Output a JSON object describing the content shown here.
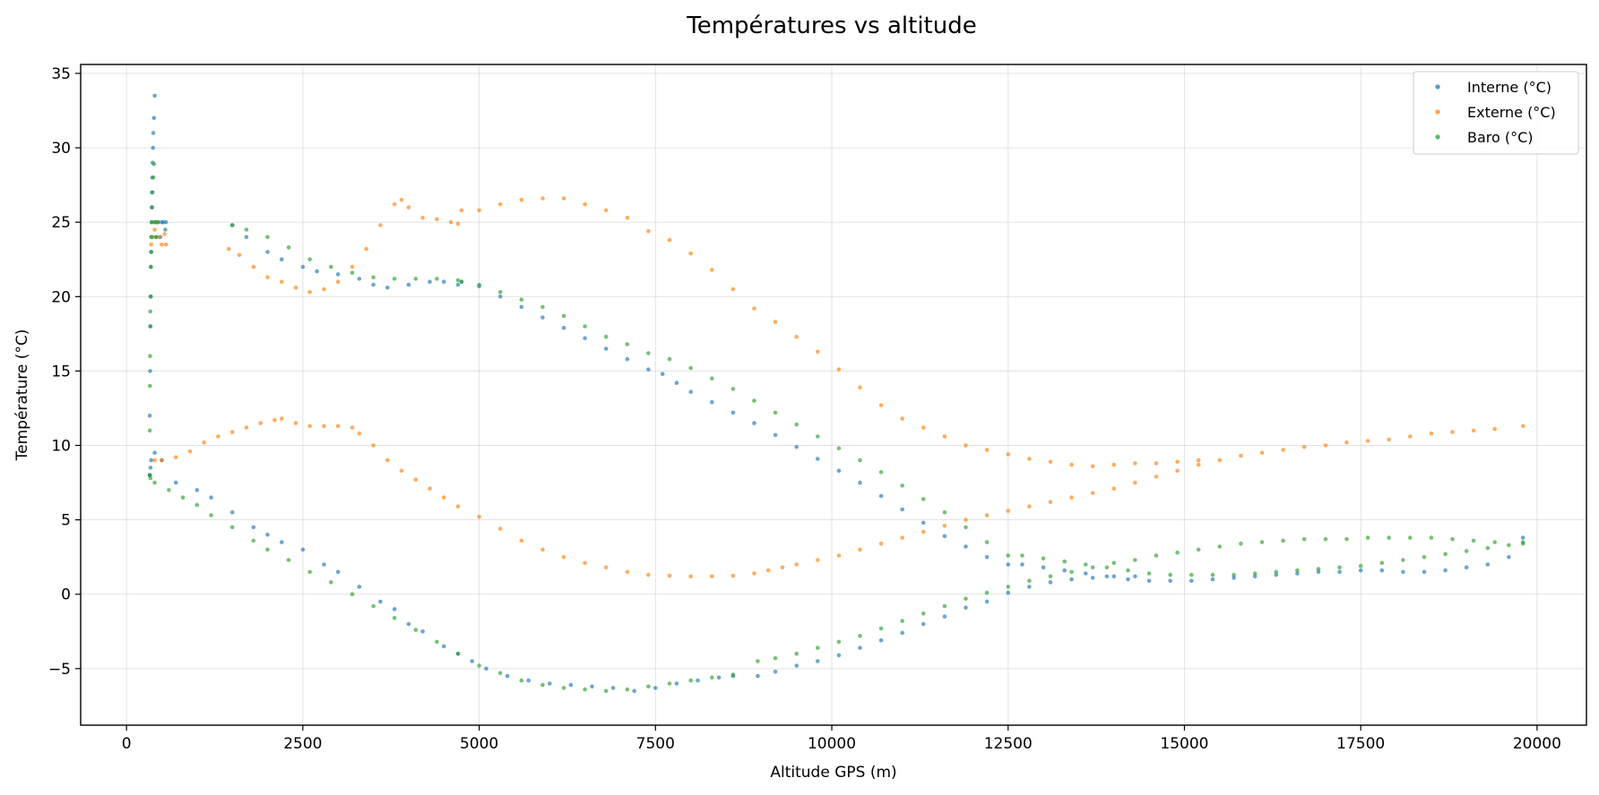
{
  "chart_data": {
    "type": "scatter",
    "title": "Températures vs altitude",
    "xlabel": "Altitude GPS (m)",
    "ylabel": "Température (°C)",
    "xlim": [
      -650,
      20700
    ],
    "ylim": [
      -8.8,
      35.6
    ],
    "xticks": [
      0,
      2500,
      5000,
      7500,
      10000,
      12500,
      15000,
      17500,
      20000
    ],
    "yticks": [
      -5,
      0,
      5,
      10,
      15,
      20,
      25,
      30,
      35
    ],
    "xtick_labels": [
      "0",
      "2500",
      "5000",
      "7500",
      "10000",
      "12500",
      "15000",
      "17500",
      "20000"
    ],
    "ytick_labels": [
      "−5",
      "0",
      "5",
      "10",
      "15",
      "20",
      "25",
      "30",
      "35"
    ],
    "grid": true,
    "legend_position": "top-right",
    "series": [
      {
        "name": "Interne (°C)",
        "color": "#1f77b4",
        "segments": [
          {
            "x": [
              330,
              330,
              335,
              340,
              345,
              345,
              350,
              352,
              355,
              356,
              360,
              365,
              370,
              375,
              380,
              390,
              400,
              410,
              420,
              450,
              480,
              500,
              520,
              550,
              560
            ],
            "y": [
              8,
              12,
              15,
              18,
              20,
              22,
              23,
              24,
              25,
              26,
              27,
              28,
              29,
              30,
              31,
              32,
              33.5,
              25,
              24,
              25,
              24,
              25,
              25,
              24.5,
              25
            ]
          },
          {
            "x": [
              330,
              340,
              350,
              400,
              500,
              700,
              1000,
              1200,
              1500,
              1800,
              2000,
              2200,
              2500,
              2800,
              3000,
              3300,
              3600,
              3800,
              4000,
              4200,
              4500,
              4700,
              4900,
              5100,
              5400,
              5700,
              6000,
              6300,
              6600,
              6900,
              7200,
              7500,
              7800,
              8100,
              8400,
              8600
            ],
            "y": [
              8,
              8.5,
              9,
              9.5,
              9,
              7.5,
              7,
              6.5,
              5.5,
              4.5,
              4,
              3.5,
              3,
              2,
              1.5,
              0.5,
              -0.5,
              -1,
              -2,
              -2.5,
              -3.5,
              -4,
              -4.5,
              -5,
              -5.5,
              -5.8,
              -6,
              -6.1,
              -6.2,
              -6.3,
              -6.5,
              -6.3,
              -6,
              -5.8,
              -5.6,
              -5.5
            ]
          },
          {
            "x": [
              1500,
              1700,
              2000,
              2200,
              2500,
              2700,
              3000,
              3300,
              3500,
              3700,
              4000,
              4300,
              4500,
              4700
            ],
            "y": [
              24.8,
              24,
              23,
              22.5,
              22,
              21.7,
              21.5,
              21.2,
              20.8,
              20.6,
              20.8,
              21,
              21,
              20.8
            ]
          },
          {
            "x": [
              4750,
              5000,
              5300,
              5600,
              5900,
              6200,
              6500,
              6800,
              7100,
              7400,
              7600,
              7800,
              8000,
              8300,
              8600,
              8900,
              9200,
              9500,
              9800,
              10100,
              10400,
              10700,
              11000,
              11300,
              11600,
              11900,
              12200,
              12500
            ],
            "y": [
              21,
              20.7,
              20,
              19.3,
              18.6,
              17.9,
              17.2,
              16.5,
              15.8,
              15.1,
              14.8,
              14.2,
              13.6,
              12.9,
              12.2,
              11.5,
              10.7,
              9.9,
              9.1,
              8.3,
              7.5,
              6.6,
              5.7,
              4.8,
              3.9,
              3.2,
              2.5,
              2
            ]
          },
          {
            "x": [
              12700,
              13000,
              13300,
              13600,
              13900,
              14200,
              14500,
              14800,
              15100,
              15400,
              15700,
              16000,
              16300,
              16600,
              16900,
              17200,
              17500,
              17800,
              18100,
              18400,
              18700,
              19000,
              19300,
              19600,
              19800
            ],
            "y": [
              2,
              1.8,
              1.6,
              1.4,
              1.2,
              1,
              0.9,
              0.9,
              0.9,
              1,
              1.1,
              1.2,
              1.3,
              1.4,
              1.5,
              1.5,
              1.6,
              1.6,
              1.5,
              1.5,
              1.6,
              1.8,
              2,
              2.5,
              3.8
            ]
          },
          {
            "x": [
              8950,
              9200,
              9500,
              9800,
              10100,
              10400,
              10700,
              11000,
              11300,
              11600,
              11900,
              12200,
              12500,
              12800,
              13100,
              13400,
              13700,
              14000,
              14300
            ],
            "y": [
              -5.5,
              -5.2,
              -4.8,
              -4.5,
              -4.1,
              -3.6,
              -3.1,
              -2.6,
              -2,
              -1.5,
              -0.9,
              -0.5,
              0.1,
              0.5,
              0.8,
              1,
              1.1,
              1.2,
              1.2
            ]
          }
        ]
      },
      {
        "name": "Externe (°C)",
        "color": "#ff7f0e",
        "segments": [
          {
            "x": [
              350,
              370,
              400,
              430,
              460,
              500,
              540,
              560
            ],
            "y": [
              23.5,
              24,
              24.5,
              25,
              24,
              23.5,
              24.2,
              23.5
            ]
          },
          {
            "x": [
              400,
              500,
              700,
              900,
              1100,
              1300,
              1500,
              1700,
              1900,
              2100,
              2200,
              2400,
              2600,
              2800,
              3000,
              3200,
              3300,
              3500,
              3700,
              3900,
              4100,
              4300,
              4500,
              4700,
              5000,
              5300,
              5600,
              5900,
              6200,
              6500,
              6800,
              7100,
              7400,
              7700,
              8000,
              8300,
              8600
            ],
            "y": [
              9,
              9,
              9.2,
              9.6,
              10.2,
              10.6,
              10.9,
              11.2,
              11.5,
              11.7,
              11.8,
              11.5,
              11.3,
              11.3,
              11.3,
              11.2,
              10.8,
              10,
              9,
              8.3,
              7.7,
              7.1,
              6.5,
              5.9,
              5.2,
              4.4,
              3.6,
              3,
              2.5,
              2.1,
              1.8,
              1.5,
              1.3,
              1.25,
              1.2,
              1.2,
              1.25
            ]
          },
          {
            "x": [
              8900,
              9100,
              9300,
              9500,
              9800,
              10100,
              10400,
              10700,
              11000,
              11300,
              11600,
              11900,
              12200,
              12500,
              12800,
              13100,
              13400,
              13700,
              14000,
              14300,
              14600,
              14900,
              15200,
              15500,
              15800,
              16100,
              16400,
              16700,
              17000,
              17300,
              17600,
              17900,
              18200,
              18500,
              18800,
              19100,
              19400,
              19800
            ],
            "y": [
              1.4,
              1.6,
              1.8,
              2,
              2.3,
              2.6,
              3,
              3.4,
              3.8,
              4.2,
              4.6,
              5,
              5.3,
              5.6,
              5.9,
              6.2,
              6.5,
              6.8,
              7.1,
              7.5,
              7.9,
              8.3,
              8.7,
              9,
              9.3,
              9.5,
              9.7,
              9.9,
              10,
              10.2,
              10.3,
              10.4,
              10.6,
              10.8,
              10.9,
              11,
              11.1,
              11.3
            ]
          },
          {
            "x": [
              1450,
              1600,
              1800,
              2000,
              2200,
              2400,
              2600,
              2800,
              3000,
              3200,
              3400,
              3600,
              3800,
              3900,
              4000,
              4200,
              4400,
              4600,
              4700
            ],
            "y": [
              23.2,
              22.8,
              22,
              21.3,
              21,
              20.6,
              20.3,
              20.5,
              21,
              22,
              23.2,
              24.8,
              26.2,
              26.5,
              26,
              25.3,
              25.2,
              25,
              24.9
            ]
          },
          {
            "x": [
              4750,
              5000,
              5300,
              5600,
              5900,
              6200,
              6500,
              6800,
              7100,
              7400,
              7700,
              8000,
              8300,
              8600,
              8900,
              9200,
              9500,
              9800,
              10100,
              10400,
              10700,
              11000,
              11300,
              11600,
              11900,
              12200,
              12500,
              12800,
              13100,
              13400,
              13700,
              14000,
              14300,
              14600,
              14900,
              15200
            ],
            "y": [
              25.8,
              25.8,
              26.2,
              26.5,
              26.6,
              26.6,
              26.2,
              25.8,
              25.3,
              24.4,
              23.8,
              22.9,
              21.8,
              20.5,
              19.2,
              18.3,
              17.3,
              16.3,
              15.1,
              13.9,
              12.7,
              11.8,
              11.2,
              10.6,
              10,
              9.7,
              9.4,
              9.1,
              8.9,
              8.7,
              8.6,
              8.7,
              8.8,
              8.8,
              8.9,
              9
            ]
          }
        ]
      },
      {
        "name": "Baro (°C)",
        "color": "#2ca02c",
        "segments": [
          {
            "x": [
              330,
              330,
              332,
              334,
              336,
              338,
              340,
              345,
              350,
              355,
              360,
              365,
              370,
              380,
              390,
              400,
              420,
              440
            ],
            "y": [
              8,
              11,
              14,
              16,
              18,
              19,
              20,
              22,
              23,
              24,
              25,
              26,
              27,
              28,
              28.9,
              25,
              24,
              25
            ]
          },
          {
            "x": [
              340,
              400,
              600,
              800,
              1000,
              1200,
              1500,
              1800,
              2000,
              2300,
              2600,
              2900,
              3200,
              3500,
              3800,
              4100,
              4400,
              4700,
              5000,
              5300,
              5600,
              5900,
              6200,
              6500,
              6800,
              7100,
              7400,
              7700,
              8000,
              8300,
              8600
            ],
            "y": [
              7.8,
              7.5,
              7,
              6.5,
              6,
              5.3,
              4.5,
              3.6,
              3,
              2.3,
              1.5,
              0.8,
              0,
              -0.8,
              -1.6,
              -2.4,
              -3.2,
              -4,
              -4.8,
              -5.3,
              -5.8,
              -6.1,
              -6.3,
              -6.4,
              -6.5,
              -6.4,
              -6.2,
              -6,
              -5.8,
              -5.6,
              -5.4
            ]
          },
          {
            "x": [
              1500,
              1700,
              2000,
              2300,
              2600,
              2900,
              3200,
              3500,
              3800,
              4100,
              4400,
              4700
            ],
            "y": [
              24.8,
              24.5,
              24,
              23.3,
              22.5,
              22,
              21.6,
              21.3,
              21.2,
              21.2,
              21.2,
              21.1
            ]
          },
          {
            "x": [
              4750,
              5000,
              5300,
              5600,
              5900,
              6200,
              6500,
              6800,
              7100,
              7400,
              7700,
              8000,
              8300,
              8600,
              8900,
              9200,
              9500,
              9800,
              10100,
              10400,
              10700,
              11000,
              11300,
              11600,
              11900,
              12200,
              12500
            ],
            "y": [
              21,
              20.8,
              20.3,
              19.8,
              19.3,
              18.7,
              18,
              17.3,
              16.8,
              16.2,
              15.8,
              15.2,
              14.5,
              13.8,
              13,
              12.2,
              11.4,
              10.6,
              9.8,
              9,
              8.2,
              7.3,
              6.4,
              5.5,
              4.5,
              3.5,
              2.6
            ]
          },
          {
            "x": [
              12700,
              13000,
              13300,
              13600,
              13900,
              14200,
              14500,
              14800,
              15100,
              15400,
              15700,
              16000,
              16300,
              16600,
              16900,
              17200,
              17500,
              17800,
              18100,
              18400,
              18700,
              19000,
              19300,
              19600,
              19800
            ],
            "y": [
              2.6,
              2.4,
              2.2,
              2,
              1.8,
              1.6,
              1.4,
              1.3,
              1.3,
              1.3,
              1.3,
              1.4,
              1.5,
              1.6,
              1.7,
              1.8,
              1.9,
              2.1,
              2.3,
              2.5,
              2.7,
              2.9,
              3.1,
              3.3,
              3.5
            ]
          },
          {
            "x": [
              8950,
              9200,
              9500,
              9800,
              10100,
              10400,
              10700,
              11000,
              11300,
              11600,
              11900,
              12200,
              12500,
              12800,
              13100,
              13400,
              13700,
              14000,
              14300,
              14600,
              14900,
              15200,
              15500,
              15800,
              16100,
              16400,
              16700,
              17000,
              17300,
              17600,
              17900,
              18200,
              18500,
              18800,
              19100,
              19400,
              19800
            ],
            "y": [
              -4.5,
              -4.3,
              -4,
              -3.6,
              -3.2,
              -2.8,
              -2.3,
              -1.8,
              -1.3,
              -0.8,
              -0.3,
              0.1,
              0.5,
              0.9,
              1.2,
              1.5,
              1.8,
              2.1,
              2.3,
              2.6,
              2.8,
              3,
              3.2,
              3.4,
              3.5,
              3.6,
              3.7,
              3.7,
              3.7,
              3.8,
              3.8,
              3.8,
              3.8,
              3.7,
              3.6,
              3.5,
              3.4
            ]
          }
        ]
      }
    ]
  }
}
